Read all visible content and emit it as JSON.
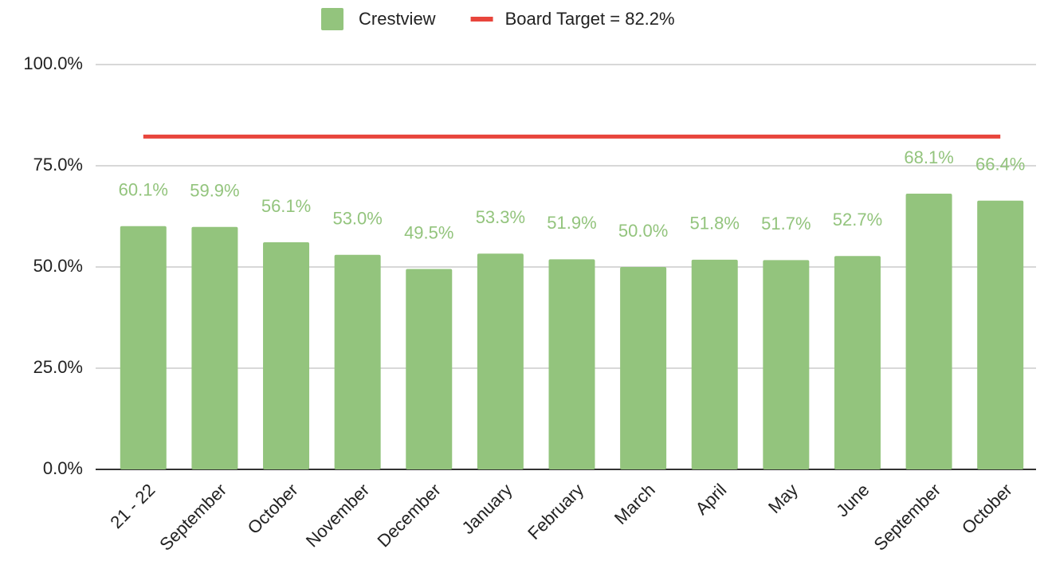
{
  "chart_data": {
    "type": "bar",
    "categories": [
      "21 - 22",
      "September",
      "October",
      "November",
      "December",
      "January",
      "February",
      "March",
      "April",
      "May",
      "June",
      "September",
      "October"
    ],
    "series": [
      {
        "name": "Crestview",
        "color": "#93c47d",
        "type": "bar",
        "values": [
          60.1,
          59.9,
          56.1,
          53.0,
          49.5,
          53.3,
          51.9,
          50.0,
          51.8,
          51.7,
          52.7,
          68.1,
          66.4
        ],
        "value_labels": [
          "60.1%",
          "59.9%",
          "56.1%",
          "53.0%",
          "49.5%",
          "53.3%",
          "51.9%",
          "50.0%",
          "51.8%",
          "51.7%",
          "52.7%",
          "68.1%",
          "66.4%"
        ]
      },
      {
        "name": "Board Target = 82.2%",
        "color": "#e8453c",
        "type": "line",
        "values": [
          82.2,
          82.2,
          82.2,
          82.2,
          82.2,
          82.2,
          82.2,
          82.2,
          82.2,
          82.2,
          82.2,
          82.2,
          82.2
        ]
      }
    ],
    "ylim": [
      0,
      100
    ],
    "yticks": [
      {
        "value": 0,
        "label": "0.0%"
      },
      {
        "value": 25,
        "label": "25.0%"
      },
      {
        "value": 50,
        "label": "50.0%"
      },
      {
        "value": 75,
        "label": "75.0%"
      },
      {
        "value": 100,
        "label": "100.0%"
      }
    ],
    "grid": true,
    "legend": "top"
  }
}
